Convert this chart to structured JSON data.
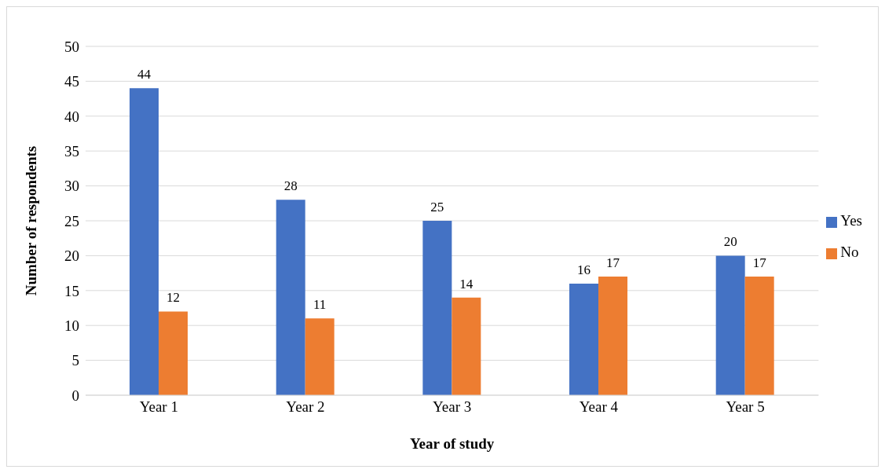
{
  "chart_data": {
    "type": "bar",
    "xlabel": "Year of study",
    "ylabel": "Number of respondents",
    "categories": [
      "Year 1",
      "Year 2",
      "Year 3",
      "Year 4",
      "Year 5"
    ],
    "series": [
      {
        "name": "Yes",
        "color": "#4472c4",
        "values": [
          44,
          28,
          25,
          16,
          20
        ]
      },
      {
        "name": "No",
        "color": "#ed7d31",
        "values": [
          12,
          11,
          14,
          17,
          17
        ]
      }
    ],
    "ylim": [
      0,
      50
    ],
    "yticks": [
      0,
      5,
      10,
      15,
      20,
      25,
      30,
      35,
      40,
      45,
      50
    ],
    "grid": "y",
    "legend": "right",
    "data_labels": true
  }
}
